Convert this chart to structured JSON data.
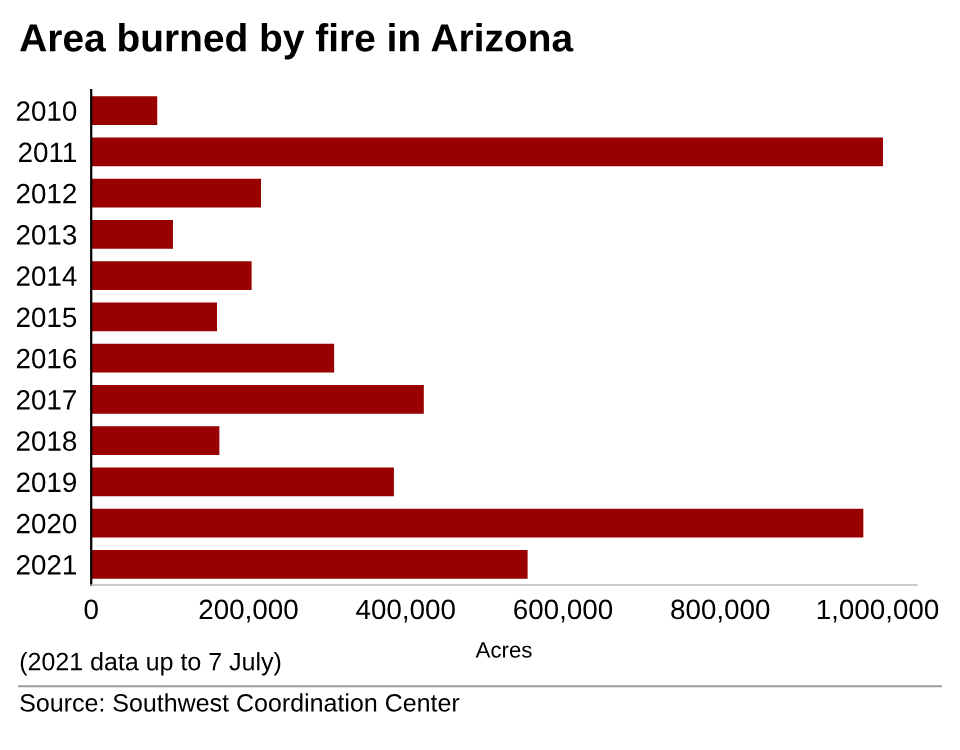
{
  "chart_data": {
    "type": "bar",
    "orientation": "horizontal",
    "title": "Area burned by fire in Arizona",
    "xlabel": "Acres",
    "categories": [
      "2010",
      "2011",
      "2012",
      "2013",
      "2014",
      "2015",
      "2016",
      "2017",
      "2018",
      "2019",
      "2020",
      "2021"
    ],
    "values": [
      84000,
      1007000,
      216000,
      104000,
      204000,
      160000,
      309000,
      423000,
      163000,
      385000,
      982000,
      555000
    ],
    "color": "#990000",
    "xlim": [
      0,
      1050000
    ],
    "xticks": [
      0,
      {
        "value": 200000,
        "label": "200,000"
      },
      {
        "value": 400000,
        "label": "400,000"
      },
      {
        "value": 600000,
        "label": "600,000"
      },
      {
        "value": 800000,
        "label": "800,000"
      },
      {
        "value": 1000000,
        "label": "1,000,000"
      }
    ],
    "grid": false,
    "legend": false,
    "annotations": [
      "(2021 data up to 7 July)",
      "Source: Southwest Coordination Center"
    ]
  }
}
